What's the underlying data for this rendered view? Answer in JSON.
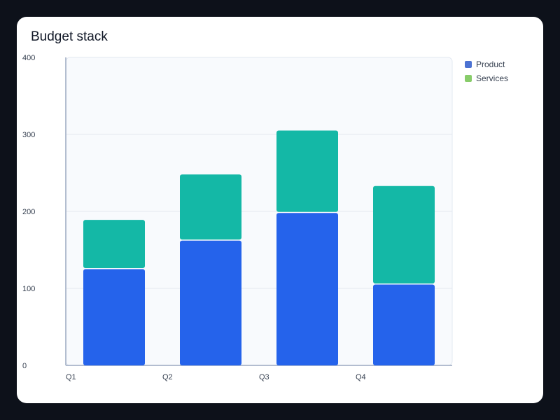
{
  "chart_data": {
    "type": "bar",
    "stacked": true,
    "title": "Budget stack",
    "xlabel": "",
    "ylabel": "",
    "categories": [
      "Q1",
      "Q2",
      "Q3",
      "Q4"
    ],
    "series": [
      {
        "name": "Product",
        "values": [
          125,
          162,
          198,
          105
        ]
      },
      {
        "name": "Services",
        "values": [
          64,
          86,
          107,
          128
        ]
      }
    ],
    "ylim": [
      0,
      400
    ],
    "yticks": [
      0,
      100,
      200,
      300,
      400
    ],
    "grid": true,
    "legend_position": "right",
    "colors": {
      "bars": [
        "#2563eb",
        "#14b8a6"
      ],
      "legend": [
        "#4c72d2",
        "#88cc6a"
      ]
    }
  }
}
